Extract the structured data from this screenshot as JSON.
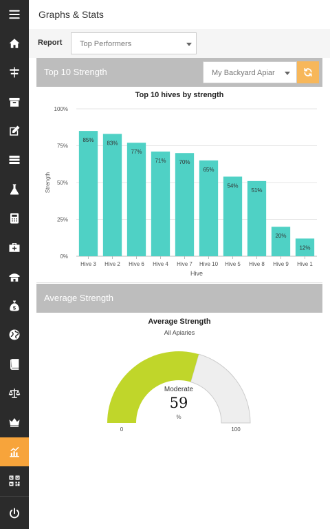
{
  "header": {
    "title": "Graphs & Stats"
  },
  "report": {
    "label": "Report",
    "selected": "Top Performers"
  },
  "strength_panel": {
    "title": "Top 10 Strength",
    "apiary_selected": "My Backyard Apiar"
  },
  "average_panel": {
    "title": "Average Strength"
  },
  "sidebar": {
    "items": [
      {
        "icon": "menu-icon"
      },
      {
        "icon": "home-icon"
      },
      {
        "icon": "hive-icon"
      },
      {
        "icon": "archive-icon"
      },
      {
        "icon": "edit-icon"
      },
      {
        "icon": "list-icon"
      },
      {
        "icon": "flask-icon"
      },
      {
        "icon": "calculator-icon"
      },
      {
        "icon": "medkit-icon"
      },
      {
        "icon": "apiary-icon"
      },
      {
        "icon": "money-bag-icon"
      },
      {
        "icon": "globe-icon"
      },
      {
        "icon": "book-icon"
      },
      {
        "icon": "scale-icon"
      },
      {
        "icon": "crown-icon"
      },
      {
        "icon": "chart-icon"
      },
      {
        "icon": "qr-code-icon"
      },
      {
        "icon": "power-icon"
      }
    ],
    "active_color": "#f7a43b"
  },
  "chart_data": [
    {
      "type": "bar",
      "title": "Top 10 hives by strength",
      "xlabel": "Hive",
      "ylabel": "Strength",
      "categories": [
        "Hive 3",
        "Hive 2",
        "Hive 6",
        "Hive 4",
        "Hive 7",
        "Hive 10",
        "Hive 5",
        "Hive 8",
        "Hive 9",
        "Hive 1"
      ],
      "values": [
        85,
        83,
        77,
        71,
        70,
        65,
        54,
        51,
        20,
        12
      ],
      "data_labels": [
        "85%",
        "83%",
        "77%",
        "71%",
        "70%",
        "65%",
        "54%",
        "51%",
        "20%",
        "12%"
      ],
      "yticks": [
        "0%",
        "25%",
        "50%",
        "75%",
        "100%"
      ],
      "ylim": [
        0,
        100
      ],
      "color": "#4fd1c5",
      "grid": true
    },
    {
      "type": "gauge",
      "title": "Average Strength",
      "subtitle": "All Apiaries",
      "value": 59,
      "value_text": "59",
      "rating": "Moderate",
      "unit": "%",
      "min": 0,
      "max": 100,
      "min_label": "0",
      "max_label": "100",
      "fill_color": "#c0d62a",
      "track_color": "#eeeeee"
    }
  ]
}
